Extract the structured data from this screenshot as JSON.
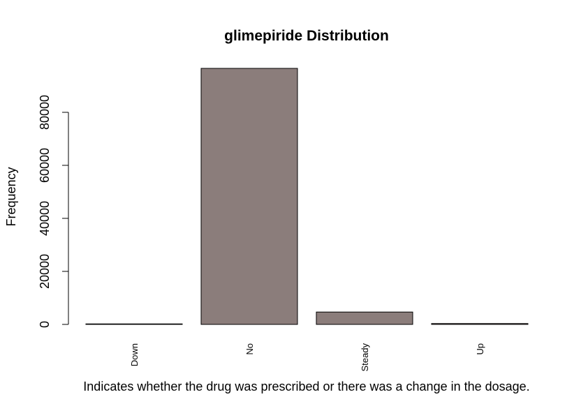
{
  "chart_data": {
    "type": "bar",
    "title": "glimepiride Distribution",
    "xlabel": "Indicates whether the drug was prescribed or there was a change in the dosage.",
    "ylabel": "Frequency",
    "categories": [
      "Down",
      "No",
      "Steady",
      "Up"
    ],
    "values": [
      194,
      96575,
      4670,
      327
    ],
    "ylim": [
      0,
      96575
    ],
    "yticks": [
      0,
      20000,
      40000,
      60000,
      80000
    ],
    "ytick_labels": [
      "0",
      "20000",
      "40000",
      "60000",
      "80000"
    ],
    "bar_color": "#8b7d7b",
    "grid": false
  }
}
